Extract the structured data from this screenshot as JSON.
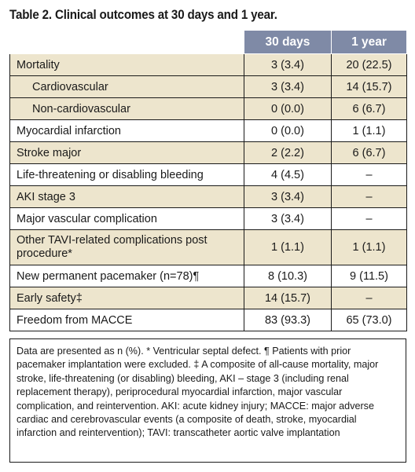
{
  "title": "Table 2. Clinical outcomes at 30 days and 1 year.",
  "headers": [
    "",
    "30 days",
    "1 year"
  ],
  "rows": [
    {
      "label": "Mortality",
      "d30": "3 (3.4)",
      "y1": "20 (22.5)",
      "indent": false,
      "shade": "tan"
    },
    {
      "label": "Cardiovascular",
      "d30": "3 (3.4)",
      "y1": "14 (15.7)",
      "indent": true,
      "shade": "tan"
    },
    {
      "label": "Non-cardiovascular",
      "d30": "0 (0.0)",
      "y1": "6 (6.7)",
      "indent": true,
      "shade": "tan"
    },
    {
      "label": "Myocardial infarction",
      "d30": "0 (0.0)",
      "y1": "1 (1.1)",
      "indent": false,
      "shade": "white"
    },
    {
      "label": "Stroke major",
      "d30": "2 (2.2)",
      "y1": "6 (6.7)",
      "indent": false,
      "shade": "tan"
    },
    {
      "label": "Life-threatening or disabling bleeding",
      "d30": "4 (4.5)",
      "y1": "–",
      "indent": false,
      "shade": "white"
    },
    {
      "label": "AKI stage 3",
      "d30": "3 (3.4)",
      "y1": "–",
      "indent": false,
      "shade": "tan"
    },
    {
      "label": "Major vascular complication",
      "d30": "3 (3.4)",
      "y1": "–",
      "indent": false,
      "shade": "white"
    },
    {
      "label": "Other TAVI-related complications post procedure*",
      "d30": "1 (1.1)",
      "y1": "1 (1.1)",
      "indent": false,
      "shade": "tan"
    },
    {
      "label": "New permanent pacemaker (n=78)¶",
      "d30": "8 (10.3)",
      "y1": "9 (11.5)",
      "indent": false,
      "shade": "white"
    },
    {
      "label": "Early safety‡",
      "d30": "14 (15.7)",
      "y1": "–",
      "indent": false,
      "shade": "tan"
    },
    {
      "label": "Freedom from MACCE",
      "d30": "83 (93.3)",
      "y1": "65 (73.0)",
      "indent": false,
      "shade": "white"
    }
  ],
  "footnote": "Data are presented as n (%). * Ventricular septal defect. ¶ Patients with prior pacemaker implantation were excluded. ‡ A composite of all-cause mortality, major stroke, life-threatening (or disabling) bleeding, AKI – stage 3 (including renal replacement therapy), periprocedural myocardial infarction, major vascular complication, and reintervention. AKI: acute kidney injury; MACCE: major adverse cardiac and cerebrovascular events (a composite of death, stroke, myocardial infarction and reintervention); TAVI: transcatheter aortic valve implantation"
}
